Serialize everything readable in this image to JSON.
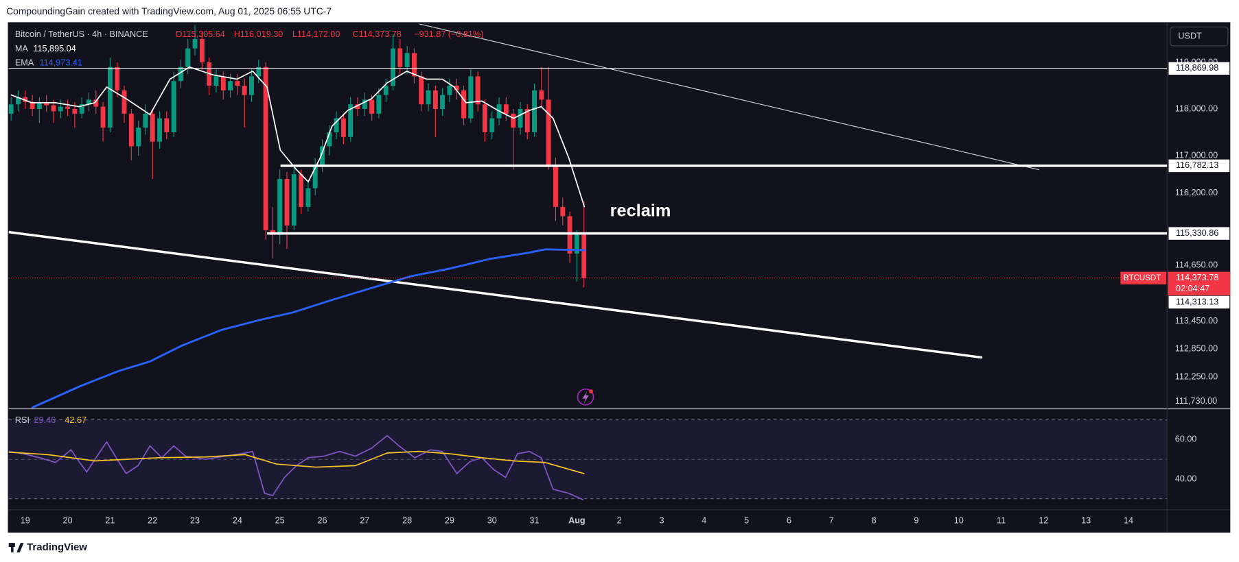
{
  "header": "CompoundingGain created with TradingView.com, Aug 01, 2025 06:55 UTC-7",
  "footer": "TradingView",
  "currency": "USDT",
  "price_tag": {
    "symbol": "BTCUSDT",
    "price": "114,373.78",
    "countdown": "02:04:47"
  },
  "chart_data": [
    {
      "type": "candlestick",
      "title": "Bitcoin / TetherUS · 4h · BINANCE",
      "legend": {
        "open": "O115,305.64",
        "high": "H116,019.30",
        "low": "L114,172.00",
        "close": "C114,373.78",
        "change": "−931.87 (−0.81%)"
      },
      "annotation": "reclaim",
      "up_color": "#089981",
      "down_color": "#f23645",
      "xlim": [
        18.61,
        45.91
      ],
      "ylim": [
        111587,
        119827
      ],
      "xticks": [
        19,
        20,
        21,
        22,
        23,
        24,
        25,
        26,
        27,
        28,
        29,
        30,
        31,
        {
          "value": 32,
          "label": "Aug"
        },
        {
          "value": 33,
          "label": "2"
        },
        {
          "value": 34,
          "label": "3"
        },
        {
          "value": 35,
          "label": "4"
        },
        {
          "value": 36,
          "label": "5"
        },
        {
          "value": 37,
          "label": "6"
        },
        {
          "value": 38,
          "label": "7"
        },
        {
          "value": 39,
          "label": "8"
        },
        {
          "value": 40,
          "label": "9"
        },
        {
          "value": 41,
          "label": "10"
        },
        {
          "value": 42,
          "label": "11"
        },
        {
          "value": 43,
          "label": "12"
        },
        {
          "value": 44,
          "label": "13"
        },
        {
          "value": 45,
          "label": "14"
        }
      ],
      "yticks": [
        {
          "value": 119000,
          "label": "119,000.00"
        },
        {
          "value": 118000,
          "label": "118,000.00"
        },
        {
          "value": 117000,
          "label": "117,000.00"
        },
        {
          "value": 116200,
          "label": "116,200.00"
        },
        {
          "value": 114650,
          "label": "114,650.00"
        },
        {
          "value": 113450,
          "label": "113,450.00"
        },
        {
          "value": 112850,
          "label": "112,850.00"
        },
        {
          "value": 112250,
          "label": "112,250.00"
        },
        {
          "value": 111730,
          "label": "111,730.00"
        }
      ],
      "levels": [
        {
          "value": 118869.98,
          "label": "118,869.98"
        },
        {
          "value": 116782.13,
          "label": "116,782.13"
        },
        {
          "value": 115330.86,
          "label": "115,330.86"
        },
        {
          "value": 114313.13,
          "label": "114,313.13"
        }
      ],
      "x": [
        18.667,
        18.833,
        19,
        19.167,
        19.333,
        19.5,
        19.667,
        19.833,
        20,
        20.167,
        20.333,
        20.5,
        20.667,
        20.833,
        21,
        21.167,
        21.333,
        21.5,
        21.667,
        21.833,
        22,
        22.167,
        22.333,
        22.5,
        22.667,
        22.833,
        23,
        23.167,
        23.333,
        23.5,
        23.667,
        23.833,
        24,
        24.167,
        24.333,
        24.5,
        24.667,
        24.833,
        25,
        25.167,
        25.333,
        25.5,
        25.667,
        25.833,
        26,
        26.167,
        26.333,
        26.5,
        26.667,
        26.833,
        27,
        27.167,
        27.333,
        27.5,
        27.667,
        27.833,
        28,
        28.167,
        28.333,
        28.5,
        28.667,
        28.833,
        29,
        29.167,
        29.333,
        29.5,
        29.667,
        29.833,
        30,
        30.167,
        30.333,
        30.5,
        30.667,
        30.833,
        31,
        31.167,
        31.333,
        31.5,
        31.667,
        31.833,
        32,
        32.167
      ],
      "open": [
        117900,
        118100,
        118250,
        118150,
        118000,
        118120,
        118080,
        117950,
        118050,
        118000,
        117900,
        118100,
        118200,
        118050,
        117600,
        118900,
        118400,
        117900,
        117200,
        117600,
        117900,
        117300,
        117800,
        117500,
        118600,
        118900,
        119300,
        119500,
        119000,
        118500,
        118700,
        118400,
        118600,
        118500,
        118300,
        118700,
        118900,
        115400,
        115300,
        116500,
        115500,
        116600,
        115900,
        116300,
        116800,
        117200,
        117500,
        117800,
        117400,
        118100,
        118000,
        118200,
        117900,
        118300,
        118500,
        119300,
        118900,
        119200,
        118700,
        118100,
        118400,
        118000,
        118300,
        118500,
        118400,
        117800,
        118700,
        118100,
        117500,
        117800,
        118100,
        117900,
        117600,
        118000,
        117500,
        118400,
        118200,
        116800,
        115900,
        115700,
        114900,
        115305.64
      ],
      "high": [
        118250,
        118400,
        118400,
        118300,
        118250,
        118300,
        118200,
        118200,
        118200,
        118150,
        118250,
        118350,
        118400,
        118150,
        119100,
        119000,
        118500,
        118000,
        117750,
        118100,
        118000,
        117950,
        117950,
        118800,
        119050,
        119500,
        119800,
        119650,
        119100,
        118850,
        118800,
        118750,
        118750,
        118650,
        118850,
        119050,
        119000,
        115900,
        116700,
        116650,
        116750,
        116700,
        116450,
        116950,
        117350,
        117650,
        117950,
        117900,
        118250,
        118250,
        118350,
        118300,
        118450,
        118650,
        119600,
        119500,
        119350,
        119300,
        118800,
        118550,
        118500,
        118450,
        118650,
        118650,
        118500,
        118850,
        118800,
        118200,
        117950,
        118250,
        118250,
        118000,
        118150,
        118100,
        118550,
        118900,
        118900,
        116950,
        116100,
        115800,
        115400,
        116019.3
      ],
      "low": [
        117750,
        117950,
        118000,
        117850,
        117700,
        117950,
        117700,
        117800,
        117850,
        117600,
        117800,
        117950,
        117900,
        117300,
        117500,
        118250,
        117700,
        116900,
        117000,
        117450,
        116500,
        117150,
        117350,
        117400,
        118450,
        118750,
        119150,
        118850,
        118300,
        118350,
        118200,
        118250,
        118300,
        117600,
        118150,
        118550,
        115200,
        114800,
        115100,
        115000,
        115400,
        115750,
        115800,
        116150,
        116650,
        117000,
        117350,
        117250,
        117300,
        117850,
        117850,
        117750,
        117800,
        118150,
        118400,
        118750,
        118750,
        118550,
        117950,
        117950,
        117400,
        117850,
        118150,
        118200,
        117650,
        117700,
        117950,
        117300,
        117350,
        117650,
        117750,
        116700,
        117450,
        117350,
        117400,
        118050,
        116700,
        115600,
        115500,
        114700,
        114300,
        114172.0
      ],
      "close": [
        118100,
        118250,
        118150,
        118000,
        118120,
        118080,
        117950,
        118050,
        118000,
        117900,
        118100,
        118200,
        118050,
        117600,
        118900,
        118400,
        117900,
        117200,
        117600,
        117900,
        117300,
        117800,
        117500,
        118600,
        118900,
        119300,
        119500,
        119000,
        118500,
        118700,
        118400,
        118600,
        118500,
        118300,
        118700,
        118900,
        115400,
        115300,
        116500,
        115500,
        116600,
        115900,
        116300,
        116800,
        117200,
        117500,
        117800,
        117400,
        118100,
        118000,
        118200,
        117900,
        118300,
        118500,
        119300,
        118900,
        119200,
        118700,
        118100,
        118400,
        118000,
        118300,
        118500,
        118400,
        117800,
        118700,
        118100,
        117500,
        117800,
        118100,
        117900,
        117600,
        118000,
        117500,
        118400,
        118200,
        116800,
        115900,
        115700,
        114900,
        115305.64,
        114373.78
      ],
      "series": [
        {
          "name": "MA",
          "color": "#ffffff",
          "legend_value": "115,895.04",
          "x": [
            18.66,
            19.15,
            19.71,
            20.27,
            20.64,
            20.92,
            21.38,
            21.94,
            22.41,
            22.87,
            23.43,
            23.99,
            24.36,
            24.7,
            25.01,
            25.39,
            25.67,
            25.95,
            26.23,
            26.6,
            27.16,
            27.53,
            27.99,
            28.46,
            28.83,
            29.11,
            29.39,
            29.76,
            30.14,
            30.51,
            30.88,
            31.16,
            31.44,
            31.81,
            32.18
          ],
          "values": [
            118305,
            118135,
            118135,
            118050,
            118135,
            118470,
            118220,
            117880,
            118640,
            118900,
            118730,
            118640,
            118810,
            118470,
            117120,
            116700,
            116440,
            116950,
            117630,
            117970,
            118220,
            118560,
            118810,
            118640,
            118640,
            118470,
            118135,
            118170,
            117970,
            117800,
            117970,
            118050,
            117800,
            116950,
            115895.04
          ]
        },
        {
          "name": "EMA",
          "color": "#2962ff",
          "legend_value": "114,973.41",
          "x": [
            19.15,
            20.27,
            21.2,
            21.94,
            22.69,
            23.62,
            24.55,
            25.3,
            26.23,
            27.16,
            28.09,
            29.02,
            29.95,
            30.88,
            31.25,
            32.2
          ],
          "values": [
            111590,
            112045,
            112380,
            112585,
            112925,
            113260,
            113480,
            113635,
            113905,
            114160,
            114415,
            114580,
            114785,
            114920,
            114990,
            114973.41
          ]
        }
      ]
    },
    {
      "type": "line",
      "title": "RSI",
      "xlim": [
        18.61,
        45.91
      ],
      "ylim": [
        24.8,
        75.2
      ],
      "yticks": [
        {
          "value": 60,
          "label": "60.00"
        },
        {
          "value": 40,
          "label": "40.00"
        }
      ],
      "series": [
        {
          "name": "RSI",
          "color": "#7e57c2",
          "legend_value": "29.46",
          "x": [
            18.61,
            18.96,
            19.34,
            19.71,
            20.08,
            20.27,
            20.45,
            20.73,
            20.92,
            21.2,
            21.38,
            21.66,
            21.94,
            22.22,
            22.5,
            22.78,
            23.25,
            23.71,
            24.08,
            24.36,
            24.64,
            24.83,
            25.11,
            25.39,
            25.67,
            26.04,
            26.41,
            26.78,
            27.16,
            27.53,
            27.81,
            28.18,
            28.55,
            28.83,
            29.17,
            29.48,
            29.76,
            30.04,
            30.32,
            30.6,
            30.88,
            31.16,
            31.44,
            31.81,
            32.15
          ],
          "values": [
            54,
            52.8,
            50.8,
            48.4,
            54.8,
            48.8,
            43.6,
            52.8,
            58.8,
            48.8,
            42.8,
            46.8,
            56.8,
            50.8,
            56.8,
            51.6,
            50,
            51.6,
            52.8,
            54,
            32.8,
            31.6,
            40.8,
            46.8,
            50.8,
            51.6,
            54,
            51.6,
            55.6,
            62,
            56.8,
            50.8,
            54.8,
            54,
            42.8,
            48.8,
            50.8,
            44.8,
            40.8,
            52.8,
            54,
            50.8,
            34.8,
            32.8,
            29.46
          ]
        },
        {
          "color": "#f7c325",
          "legend_value": "42.67",
          "x": [
            18.61,
            19.52,
            20.64,
            22.13,
            23.25,
            24.18,
            24.92,
            25.85,
            26.78,
            27.53,
            28.27,
            29.02,
            29.76,
            30.51,
            31.25,
            32.18
          ],
          "values": [
            53.6,
            52.4,
            49.2,
            50.8,
            51.2,
            52.4,
            47.6,
            46,
            46.8,
            53.2,
            54,
            52.8,
            50.8,
            49.2,
            48.4,
            42.67
          ]
        }
      ]
    }
  ]
}
